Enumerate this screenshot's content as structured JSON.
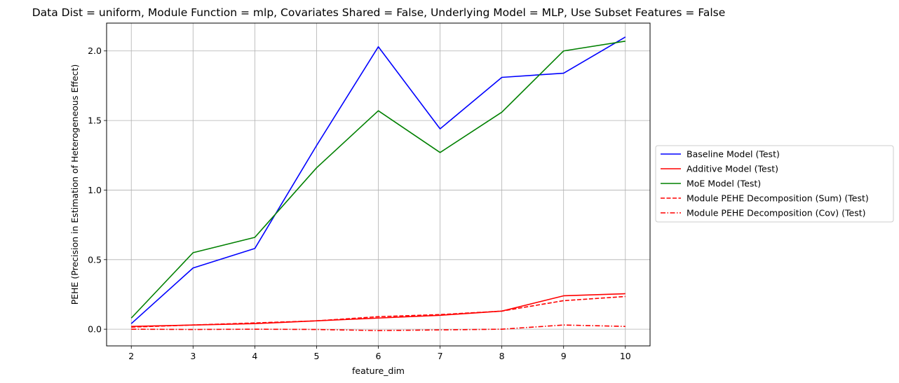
{
  "chart_data": {
    "type": "line",
    "title": "Data Dist = uniform, Module Function = mlp, Covariates Shared = False, Underlying Model = MLP, Use Subset Features = False",
    "xlabel": "feature_dim",
    "ylabel": "PEHE (Precision in Estimation of Heterogeneous Effect)",
    "x": [
      2,
      3,
      4,
      5,
      6,
      7,
      8,
      9,
      10
    ],
    "xticks": [
      "2",
      "3",
      "4",
      "5",
      "6",
      "7",
      "8",
      "9",
      "10"
    ],
    "yticks": [
      "0.0",
      "0.5",
      "1.0",
      "1.5",
      "2.0"
    ],
    "ytick_values": [
      0,
      0.5,
      1.0,
      1.5,
      2.0
    ],
    "xlim": [
      1.6,
      10.4
    ],
    "ylim": [
      -0.12,
      2.2
    ],
    "grid": true,
    "legend_position": "right-outside",
    "series": [
      {
        "name": "Baseline Model (Test)",
        "color": "#0000ff",
        "dash": "solid",
        "values": [
          0.04,
          0.44,
          0.58,
          1.32,
          2.03,
          1.44,
          1.81,
          1.84,
          2.1
        ]
      },
      {
        "name": "Additive Model (Test)",
        "color": "#ff0000",
        "dash": "solid",
        "values": [
          0.02,
          0.03,
          0.04,
          0.06,
          0.08,
          0.1,
          0.13,
          0.24,
          0.255
        ]
      },
      {
        "name": "MoE Model (Test)",
        "color": "#008000",
        "dash": "solid",
        "values": [
          0.08,
          0.55,
          0.66,
          1.16,
          1.57,
          1.27,
          1.56,
          2.0,
          2.07
        ]
      },
      {
        "name": "Module PEHE Decomposition (Sum) (Test)",
        "color": "#ff0000",
        "dash": "dashed",
        "values": [
          0.015,
          0.03,
          0.045,
          0.06,
          0.09,
          0.105,
          0.13,
          0.205,
          0.235
        ]
      },
      {
        "name": "Module PEHE Decomposition (Cov) (Test)",
        "color": "#ff0000",
        "dash": "dashdot",
        "values": [
          0.0,
          -0.002,
          0.0,
          -0.002,
          -0.01,
          -0.005,
          0.0,
          0.03,
          0.02
        ]
      }
    ]
  }
}
